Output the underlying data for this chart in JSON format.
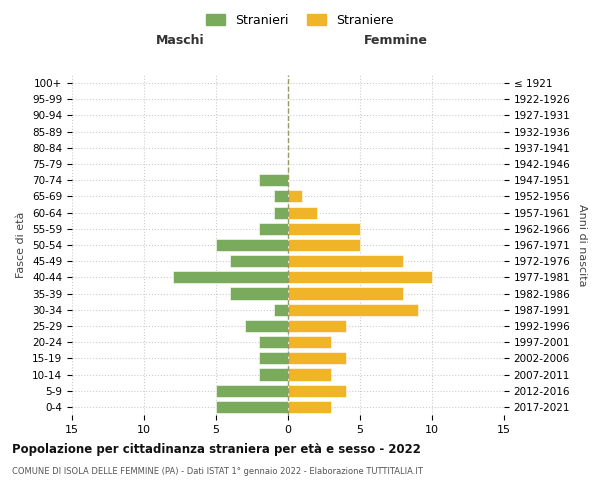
{
  "age_groups": [
    "0-4",
    "5-9",
    "10-14",
    "15-19",
    "20-24",
    "25-29",
    "30-34",
    "35-39",
    "40-44",
    "45-49",
    "50-54",
    "55-59",
    "60-64",
    "65-69",
    "70-74",
    "75-79",
    "80-84",
    "85-89",
    "90-94",
    "95-99",
    "100+"
  ],
  "birth_years": [
    "2017-2021",
    "2012-2016",
    "2007-2011",
    "2002-2006",
    "1997-2001",
    "1992-1996",
    "1987-1991",
    "1982-1986",
    "1977-1981",
    "1972-1976",
    "1967-1971",
    "1962-1966",
    "1957-1961",
    "1952-1956",
    "1947-1951",
    "1942-1946",
    "1937-1941",
    "1932-1936",
    "1927-1931",
    "1922-1926",
    "≤ 1921"
  ],
  "males": [
    5,
    5,
    2,
    2,
    2,
    3,
    1,
    4,
    8,
    4,
    5,
    2,
    1,
    1,
    2,
    0,
    0,
    0,
    0,
    0,
    0
  ],
  "females": [
    3,
    4,
    3,
    4,
    3,
    4,
    9,
    8,
    10,
    8,
    5,
    5,
    2,
    1,
    0,
    0,
    0,
    0,
    0,
    0,
    0
  ],
  "male_color": "#7aaa5c",
  "female_color": "#f0b429",
  "title": "Popolazione per cittadinanza straniera per età e sesso - 2022",
  "subtitle": "COMUNE DI ISOLA DELLE FEMMINE (PA) - Dati ISTAT 1° gennaio 2022 - Elaborazione TUTTITALIA.IT",
  "xlabel_left": "Maschi",
  "xlabel_right": "Femmine",
  "ylabel_left": "Fasce di età",
  "ylabel_right": "Anni di nascita",
  "legend_male": "Stranieri",
  "legend_female": "Straniere",
  "xlim": 15,
  "background_color": "#ffffff",
  "grid_color": "#cccccc"
}
